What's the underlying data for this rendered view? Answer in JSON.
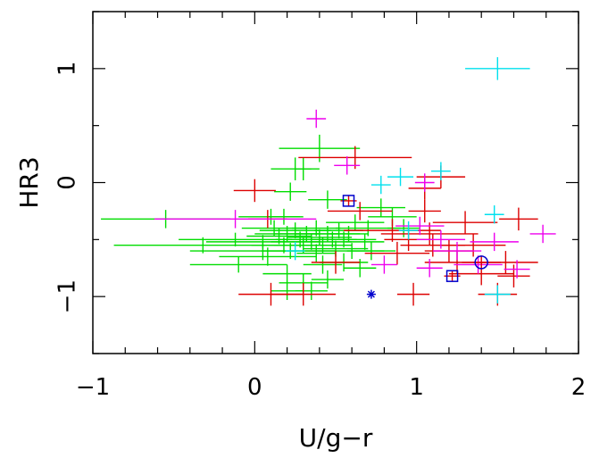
{
  "chart_data": {
    "type": "scatter",
    "title": "",
    "xlabel": "U/g−r",
    "ylabel": "HR3",
    "xlim": [
      -1,
      2
    ],
    "ylim": [
      -1.5,
      1.5
    ],
    "x_ticks": [
      -1,
      0,
      1,
      2
    ],
    "x_tick_labels": [
      "−1",
      "0",
      "1",
      "2"
    ],
    "y_ticks": [
      -1,
      0,
      1
    ],
    "y_tick_labels": [
      "−1",
      "0",
      "1"
    ],
    "grid": false,
    "colors": {
      "green": "#00dd00",
      "red": "#dd0000",
      "magenta": "#ee00ee",
      "cyan": "#00e0ee",
      "blue": "#0000cc"
    },
    "series": [
      {
        "color": "green",
        "marker": "errorbar-cross",
        "points": [
          {
            "x": -0.55,
            "y": -0.32,
            "xerr": 0.4,
            "yerr": 0.08
          },
          {
            "x": -0.32,
            "y": -0.55,
            "xerr": 0.55,
            "yerr": 0.07
          },
          {
            "x": -0.1,
            "y": -0.72,
            "xerr": 0.3,
            "yerr": 0.07
          },
          {
            "x": -0.12,
            "y": -0.5,
            "xerr": 0.35,
            "yerr": 0.06
          },
          {
            "x": 0.05,
            "y": -0.52,
            "xerr": 0.35,
            "yerr": 0.06
          },
          {
            "x": 0.08,
            "y": -0.65,
            "xerr": 0.3,
            "yerr": 0.08
          },
          {
            "x": 0.12,
            "y": -0.4,
            "xerr": 0.2,
            "yerr": 0.07
          },
          {
            "x": 0.15,
            "y": -0.47,
            "xerr": 0.2,
            "yerr": 0.07
          },
          {
            "x": 0.18,
            "y": -0.55,
            "xerr": 0.2,
            "yerr": 0.07
          },
          {
            "x": 0.2,
            "y": -0.45,
            "xerr": 0.2,
            "yerr": 0.07
          },
          {
            "x": 0.22,
            "y": -0.6,
            "xerr": 0.18,
            "yerr": 0.07
          },
          {
            "x": 0.25,
            "y": -0.42,
            "xerr": 0.22,
            "yerr": 0.07
          },
          {
            "x": 0.28,
            "y": -0.5,
            "xerr": 0.15,
            "yerr": 0.07
          },
          {
            "x": 0.3,
            "y": -0.55,
            "xerr": 0.18,
            "yerr": 0.07
          },
          {
            "x": 0.32,
            "y": -0.45,
            "xerr": 0.2,
            "yerr": 0.07
          },
          {
            "x": 0.35,
            "y": -0.52,
            "xerr": 0.25,
            "yerr": 0.07
          },
          {
            "x": 0.38,
            "y": -0.4,
            "xerr": 0.15,
            "yerr": 0.07
          },
          {
            "x": 0.4,
            "y": -0.48,
            "xerr": 0.2,
            "yerr": 0.07
          },
          {
            "x": 0.42,
            "y": -0.55,
            "xerr": 0.18,
            "yerr": 0.07
          },
          {
            "x": 0.45,
            "y": -0.45,
            "xerr": 0.2,
            "yerr": 0.07
          },
          {
            "x": 0.48,
            "y": -0.5,
            "xerr": 0.15,
            "yerr": 0.07
          },
          {
            "x": 0.5,
            "y": -0.58,
            "xerr": 0.2,
            "yerr": 0.07
          },
          {
            "x": 0.52,
            "y": -0.42,
            "xerr": 0.15,
            "yerr": 0.07
          },
          {
            "x": 0.55,
            "y": -0.5,
            "xerr": 0.2,
            "yerr": 0.07
          },
          {
            "x": 0.6,
            "y": -0.6,
            "xerr": 0.2,
            "yerr": 0.07
          },
          {
            "x": 0.62,
            "y": -0.35,
            "xerr": 0.18,
            "yerr": 0.07
          },
          {
            "x": 0.7,
            "y": -0.4,
            "xerr": 0.2,
            "yerr": 0.07
          },
          {
            "x": 0.78,
            "y": -0.22,
            "xerr": 0.15,
            "yerr": 0.08
          },
          {
            "x": 0.85,
            "y": -0.3,
            "xerr": 0.15,
            "yerr": 0.08
          },
          {
            "x": 0.92,
            "y": -0.4,
            "xerr": 0.1,
            "yerr": 0.08
          },
          {
            "x": 0.25,
            "y": 0.12,
            "xerr": 0.15,
            "yerr": 0.1
          },
          {
            "x": 0.3,
            "y": 0.12,
            "xerr": 0.05,
            "yerr": 0.1
          },
          {
            "x": 0.4,
            "y": 0.3,
            "xerr": 0.25,
            "yerr": 0.12
          },
          {
            "x": 0.22,
            "y": -0.08,
            "xerr": 0.1,
            "yerr": 0.08
          },
          {
            "x": 0.45,
            "y": -0.15,
            "xerr": 0.12,
            "yerr": 0.08
          },
          {
            "x": 0.05,
            "y": -0.6,
            "xerr": 0.45,
            "yerr": 0.08
          },
          {
            "x": 0.1,
            "y": -0.3,
            "xerr": 0.2,
            "yerr": 0.07
          },
          {
            "x": 0.2,
            "y": -0.8,
            "xerr": 0.15,
            "yerr": 0.08
          },
          {
            "x": 0.3,
            "y": -0.88,
            "xerr": 0.15,
            "yerr": 0.08
          },
          {
            "x": 0.35,
            "y": -0.95,
            "xerr": 0.1,
            "yerr": 0.08
          },
          {
            "x": 0.45,
            "y": -0.85,
            "xerr": 0.1,
            "yerr": 0.08
          },
          {
            "x": 0.55,
            "y": -0.7,
            "xerr": 0.15,
            "yerr": 0.08
          },
          {
            "x": 0.65,
            "y": -0.75,
            "xerr": 0.1,
            "yerr": 0.08
          },
          {
            "x": 0.38,
            "y": -0.62,
            "xerr": 0.12,
            "yerr": 0.08
          },
          {
            "x": 0.42,
            "y": -0.72,
            "xerr": 0.12,
            "yerr": 0.08
          },
          {
            "x": 0.72,
            "y": -0.6,
            "xerr": 0.15,
            "yerr": 0.08
          },
          {
            "x": 0.2,
            "y": -0.95,
            "xerr": 0.1,
            "yerr": 0.08
          },
          {
            "x": 0.18,
            "y": -0.3,
            "xerr": 0.1,
            "yerr": 0.07
          },
          {
            "x": 0.58,
            "y": -0.45,
            "xerr": 0.12,
            "yerr": 0.07
          },
          {
            "x": 0.68,
            "y": -0.52,
            "xerr": 0.12,
            "yerr": 0.07
          }
        ]
      },
      {
        "color": "red",
        "marker": "errorbar-cross",
        "points": [
          {
            "x": 0.62,
            "y": 0.22,
            "xerr": 0.35,
            "yerr": 0.1
          },
          {
            "x": 0.0,
            "y": -0.07,
            "xerr": 0.13,
            "yerr": 0.1
          },
          {
            "x": 0.08,
            "y": -0.32,
            "xerr": 0.12,
            "yerr": 0.08
          },
          {
            "x": 0.65,
            "y": -0.25,
            "xerr": 0.2,
            "yerr": 0.08
          },
          {
            "x": 0.85,
            "y": -0.42,
            "xerr": 0.3,
            "yerr": 0.1
          },
          {
            "x": 1.08,
            "y": -0.45,
            "xerr": 0.3,
            "yerr": 0.1
          },
          {
            "x": 1.15,
            "y": 0.05,
            "xerr": 0.15,
            "yerr": 0.1
          },
          {
            "x": 1.05,
            "y": -0.05,
            "xerr": 0.1,
            "yerr": 0.1
          },
          {
            "x": 1.1,
            "y": -0.55,
            "xerr": 0.2,
            "yerr": 0.1
          },
          {
            "x": 1.2,
            "y": -0.6,
            "xerr": 0.15,
            "yerr": 0.1
          },
          {
            "x": 1.25,
            "y": -0.7,
            "xerr": 0.2,
            "yerr": 0.1
          },
          {
            "x": 1.3,
            "y": -0.35,
            "xerr": 0.2,
            "yerr": 0.1
          },
          {
            "x": 1.4,
            "y": -0.8,
            "xerr": 0.2,
            "yerr": 0.1
          },
          {
            "x": 1.55,
            "y": -0.7,
            "xerr": 0.2,
            "yerr": 0.1
          },
          {
            "x": 1.63,
            "y": -0.32,
            "xerr": 0.12,
            "yerr": 0.1
          },
          {
            "x": 1.6,
            "y": -0.82,
            "xerr": 0.1,
            "yerr": 0.1
          },
          {
            "x": 1.5,
            "y": -0.98,
            "xerr": 0.12,
            "yerr": 0.1
          },
          {
            "x": 0.98,
            "y": -0.98,
            "xerr": 0.1,
            "yerr": 0.1
          },
          {
            "x": 0.1,
            "y": -0.98,
            "xerr": 0.2,
            "yerr": 0.1
          },
          {
            "x": 0.3,
            "y": -0.98,
            "xerr": 0.2,
            "yerr": 0.1
          },
          {
            "x": 0.5,
            "y": -0.7,
            "xerr": 0.15,
            "yerr": 0.1
          },
          {
            "x": 0.88,
            "y": -0.62,
            "xerr": 0.2,
            "yerr": 0.1
          },
          {
            "x": 1.05,
            "y": -0.25,
            "xerr": 0.1,
            "yerr": 0.1
          },
          {
            "x": 0.95,
            "y": -0.5,
            "xerr": 0.15,
            "yerr": 0.1
          },
          {
            "x": 1.35,
            "y": -0.55,
            "xerr": 0.2,
            "yerr": 0.1
          }
        ]
      },
      {
        "color": "magenta",
        "marker": "errorbar-cross",
        "points": [
          {
            "x": 0.38,
            "y": 0.56,
            "xerr": 0.06,
            "yerr": 0.08
          },
          {
            "x": 0.57,
            "y": 0.15,
            "xerr": 0.08,
            "yerr": 0.08
          },
          {
            "x": -0.12,
            "y": -0.32,
            "xerr": 0.5,
            "yerr": 0.08
          },
          {
            "x": 1.05,
            "y": 0.0,
            "xerr": 0.06,
            "yerr": 0.08
          },
          {
            "x": 0.8,
            "y": -0.72,
            "xerr": 0.08,
            "yerr": 0.08
          },
          {
            "x": 1.02,
            "y": -0.38,
            "xerr": 0.15,
            "yerr": 0.08
          },
          {
            "x": 1.15,
            "y": -0.5,
            "xerr": 0.15,
            "yerr": 0.08
          },
          {
            "x": 1.25,
            "y": -0.6,
            "xerr": 0.15,
            "yerr": 0.08
          },
          {
            "x": 1.38,
            "y": -0.72,
            "xerr": 0.15,
            "yerr": 0.08
          },
          {
            "x": 1.48,
            "y": -0.52,
            "xerr": 0.15,
            "yerr": 0.08
          },
          {
            "x": 1.62,
            "y": -0.76,
            "xerr": 0.08,
            "yerr": 0.08
          },
          {
            "x": 1.78,
            "y": -0.45,
            "xerr": 0.08,
            "yerr": 0.08
          },
          {
            "x": 1.08,
            "y": -0.75,
            "xerr": 0.08,
            "yerr": 0.08
          }
        ]
      },
      {
        "color": "cyan",
        "marker": "errorbar-cross",
        "points": [
          {
            "x": 1.5,
            "y": 1.0,
            "xerr": 0.2,
            "yerr": 0.1
          },
          {
            "x": 1.15,
            "y": 0.1,
            "xerr": 0.06,
            "yerr": 0.08
          },
          {
            "x": 0.9,
            "y": 0.05,
            "xerr": 0.08,
            "yerr": 0.08
          },
          {
            "x": 0.78,
            "y": -0.02,
            "xerr": 0.06,
            "yerr": 0.08
          },
          {
            "x": 1.48,
            "y": -0.28,
            "xerr": 0.06,
            "yerr": 0.08
          },
          {
            "x": 1.5,
            "y": -0.98,
            "xerr": 0.08,
            "yerr": 0.08
          },
          {
            "x": 0.95,
            "y": -0.42,
            "xerr": 0.06,
            "yerr": 0.08
          },
          {
            "x": 0.25,
            "y": -0.6,
            "xerr": 0.06,
            "yerr": 0.08
          }
        ]
      }
    ],
    "special_markers": [
      {
        "x": 0.58,
        "y": -0.16,
        "shape": "square",
        "color": "blue",
        "errorcolor": "red",
        "xerr": 0.05,
        "yerr": 0.05
      },
      {
        "x": 1.22,
        "y": -0.82,
        "shape": "square",
        "color": "blue",
        "errorcolor": "red",
        "xerr": 0.05,
        "yerr": 0.05
      },
      {
        "x": 1.4,
        "y": -0.7,
        "shape": "circle",
        "color": "blue",
        "errorcolor": "red",
        "xerr": 0.12,
        "yerr": 0.06
      },
      {
        "x": 0.72,
        "y": -0.98,
        "shape": "asterisk",
        "color": "blue"
      }
    ]
  }
}
